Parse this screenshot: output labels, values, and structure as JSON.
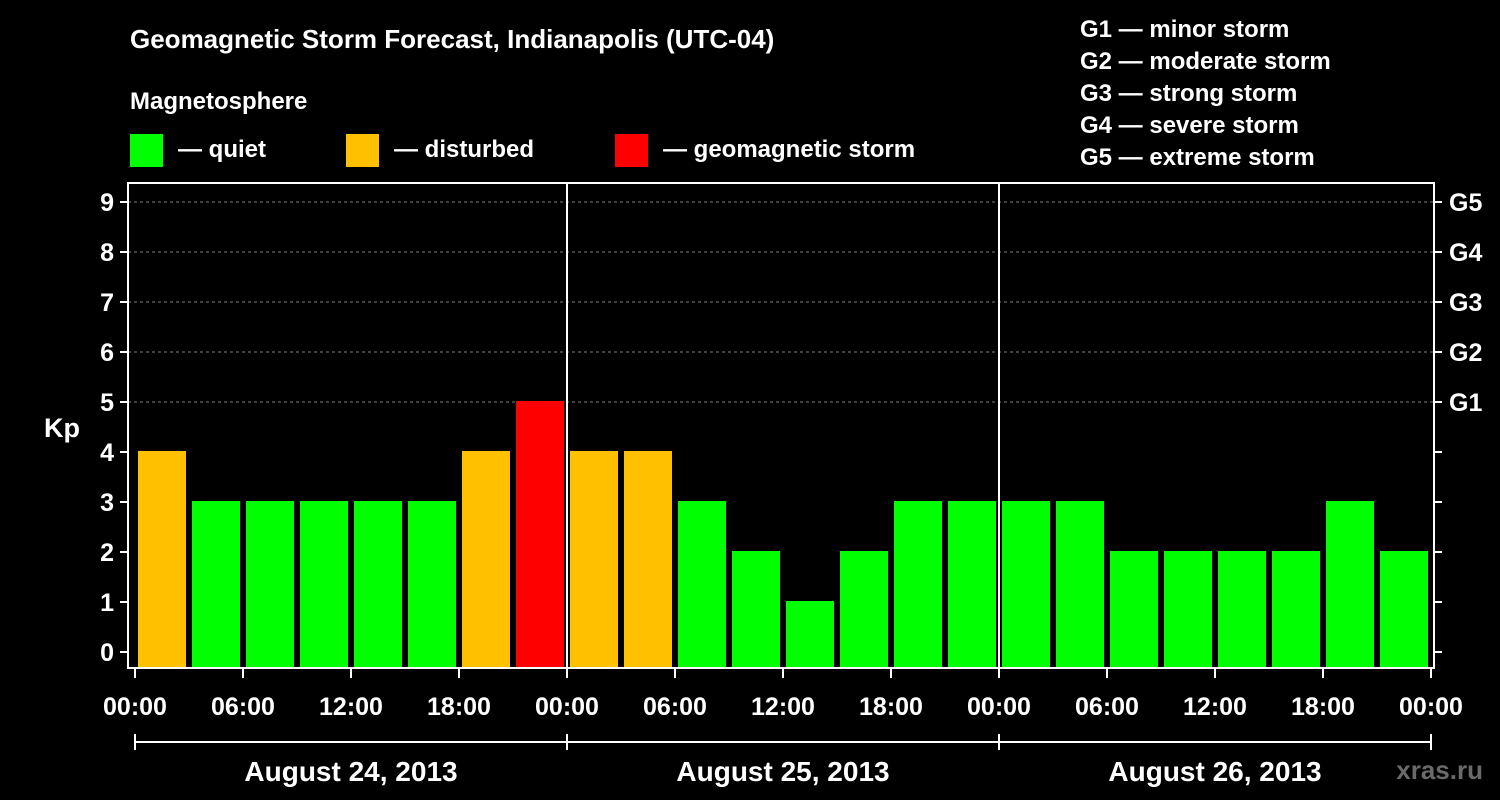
{
  "colors": {
    "quiet": "#00ff00",
    "disturbed": "#ffc000",
    "storm": "#ff0000",
    "background": "#000000",
    "foreground": "#ffffff",
    "grid": "#7f7f7f",
    "credit": "#6a6a6a"
  },
  "chart_data": {
    "type": "bar",
    "title": "Geomagnetic Storm Forecast, Indianapolis (UTC-04)",
    "subtitle": "Magnetosphere",
    "ylabel": "Kp",
    "ylim": [
      0,
      9
    ],
    "yticks": [
      "0",
      "1",
      "2",
      "3",
      "4",
      "5",
      "6",
      "7",
      "8",
      "9"
    ],
    "right_ticks": [
      {
        "kp": 5,
        "label": "G1"
      },
      {
        "kp": 6,
        "label": "G2"
      },
      {
        "kp": 7,
        "label": "G3"
      },
      {
        "kp": 8,
        "label": "G4"
      },
      {
        "kp": 9,
        "label": "G5"
      }
    ],
    "legend": [
      {
        "key": "quiet",
        "label": "— quiet"
      },
      {
        "key": "disturbed",
        "label": "— disturbed"
      },
      {
        "key": "storm",
        "label": "— geomagnetic storm"
      }
    ],
    "scale_legend": [
      "G1 — minor storm",
      "G2 — moderate storm",
      "G3 — strong storm",
      "G4 — severe storm",
      "G5 — extreme storm"
    ],
    "xticks": [
      "00:00",
      "06:00",
      "12:00",
      "18:00",
      "00:00",
      "06:00",
      "12:00",
      "18:00",
      "00:00",
      "06:00",
      "12:00",
      "18:00",
      "00:00"
    ],
    "days": [
      "August 24, 2013",
      "August 25, 2013",
      "August 26, 2013"
    ],
    "bars": [
      {
        "start": "Aug 24 00:00",
        "kp": 4,
        "level": "disturbed"
      },
      {
        "start": "Aug 24 03:00",
        "kp": 3,
        "level": "quiet"
      },
      {
        "start": "Aug 24 06:00",
        "kp": 3,
        "level": "quiet"
      },
      {
        "start": "Aug 24 09:00",
        "kp": 3,
        "level": "quiet"
      },
      {
        "start": "Aug 24 12:00",
        "kp": 3,
        "level": "quiet"
      },
      {
        "start": "Aug 24 15:00",
        "kp": 3,
        "level": "quiet"
      },
      {
        "start": "Aug 24 18:00",
        "kp": 4,
        "level": "disturbed"
      },
      {
        "start": "Aug 24 21:00",
        "kp": 5,
        "level": "storm"
      },
      {
        "start": "Aug 25 00:00",
        "kp": 4,
        "level": "disturbed"
      },
      {
        "start": "Aug 25 03:00",
        "kp": 4,
        "level": "disturbed"
      },
      {
        "start": "Aug 25 06:00",
        "kp": 3,
        "level": "quiet"
      },
      {
        "start": "Aug 25 09:00",
        "kp": 2,
        "level": "quiet"
      },
      {
        "start": "Aug 25 12:00",
        "kp": 1,
        "level": "quiet"
      },
      {
        "start": "Aug 25 15:00",
        "kp": 2,
        "level": "quiet"
      },
      {
        "start": "Aug 25 18:00",
        "kp": 3,
        "level": "quiet"
      },
      {
        "start": "Aug 25 21:00",
        "kp": 3,
        "level": "quiet"
      },
      {
        "start": "Aug 26 00:00",
        "kp": 3,
        "level": "quiet"
      },
      {
        "start": "Aug 26 03:00",
        "kp": 3,
        "level": "quiet"
      },
      {
        "start": "Aug 26 06:00",
        "kp": 2,
        "level": "quiet"
      },
      {
        "start": "Aug 26 09:00",
        "kp": 2,
        "level": "quiet"
      },
      {
        "start": "Aug 26 12:00",
        "kp": 2,
        "level": "quiet"
      },
      {
        "start": "Aug 26 15:00",
        "kp": 2,
        "level": "quiet"
      },
      {
        "start": "Aug 26 18:00",
        "kp": 3,
        "level": "quiet"
      },
      {
        "start": "Aug 26 21:00",
        "kp": 2,
        "level": "quiet"
      }
    ]
  },
  "credit": "xras.ru"
}
